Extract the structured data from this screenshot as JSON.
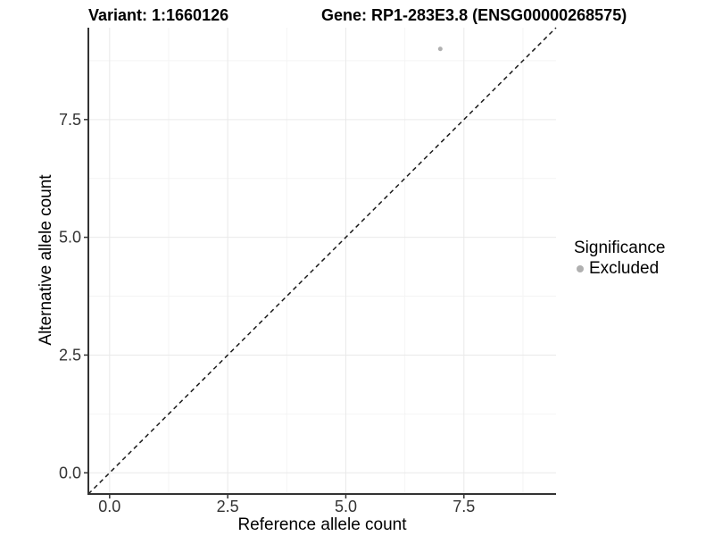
{
  "chart_data": {
    "type": "scatter",
    "title_left": "Variant: 1:1660126",
    "title_right": "Gene: RP1-283E3.8 (ENSG00000268575)",
    "xlabel": "Reference allele count",
    "ylabel": "Alternative allele count",
    "xlim": [
      -0.45,
      9.45
    ],
    "ylim": [
      -0.45,
      9.45
    ],
    "x_major_ticks": [
      0,
      2.5,
      5,
      7.5
    ],
    "x_tick_labels": [
      "0.0",
      "2.5",
      "5.0",
      "7.5"
    ],
    "y_major_ticks": [
      0,
      2.5,
      5,
      7.5
    ],
    "y_tick_labels": [
      "0.0",
      "2.5",
      "5.0",
      "7.5"
    ],
    "x_minor_ticks": [
      1.25,
      3.75,
      6.25,
      8.75
    ],
    "y_minor_ticks": [
      1.25,
      3.75,
      6.25,
      8.75
    ],
    "grid": "major+minor",
    "series": [
      {
        "name": "Excluded",
        "color": "#b0b0b0",
        "marker": "circle",
        "points": [
          {
            "x": 7,
            "y": 9
          }
        ]
      }
    ],
    "reference_line": {
      "type": "identity",
      "slope": 1,
      "intercept": 0,
      "linestyle": "dashed",
      "color": "#1a1a1a"
    },
    "legend": {
      "title": "Significance",
      "position": "right",
      "entries": [
        {
          "label": "Excluded",
          "color": "#b0b0b0",
          "marker": "circle"
        }
      ]
    }
  },
  "colors": {
    "background": "#ffffff",
    "grid_major": "#e9e9e9",
    "grid_minor": "#f4f4f4",
    "axis_line": "#333333",
    "tick_text": "#333333",
    "title_text": "#000000",
    "point": "#b0b0b0"
  }
}
